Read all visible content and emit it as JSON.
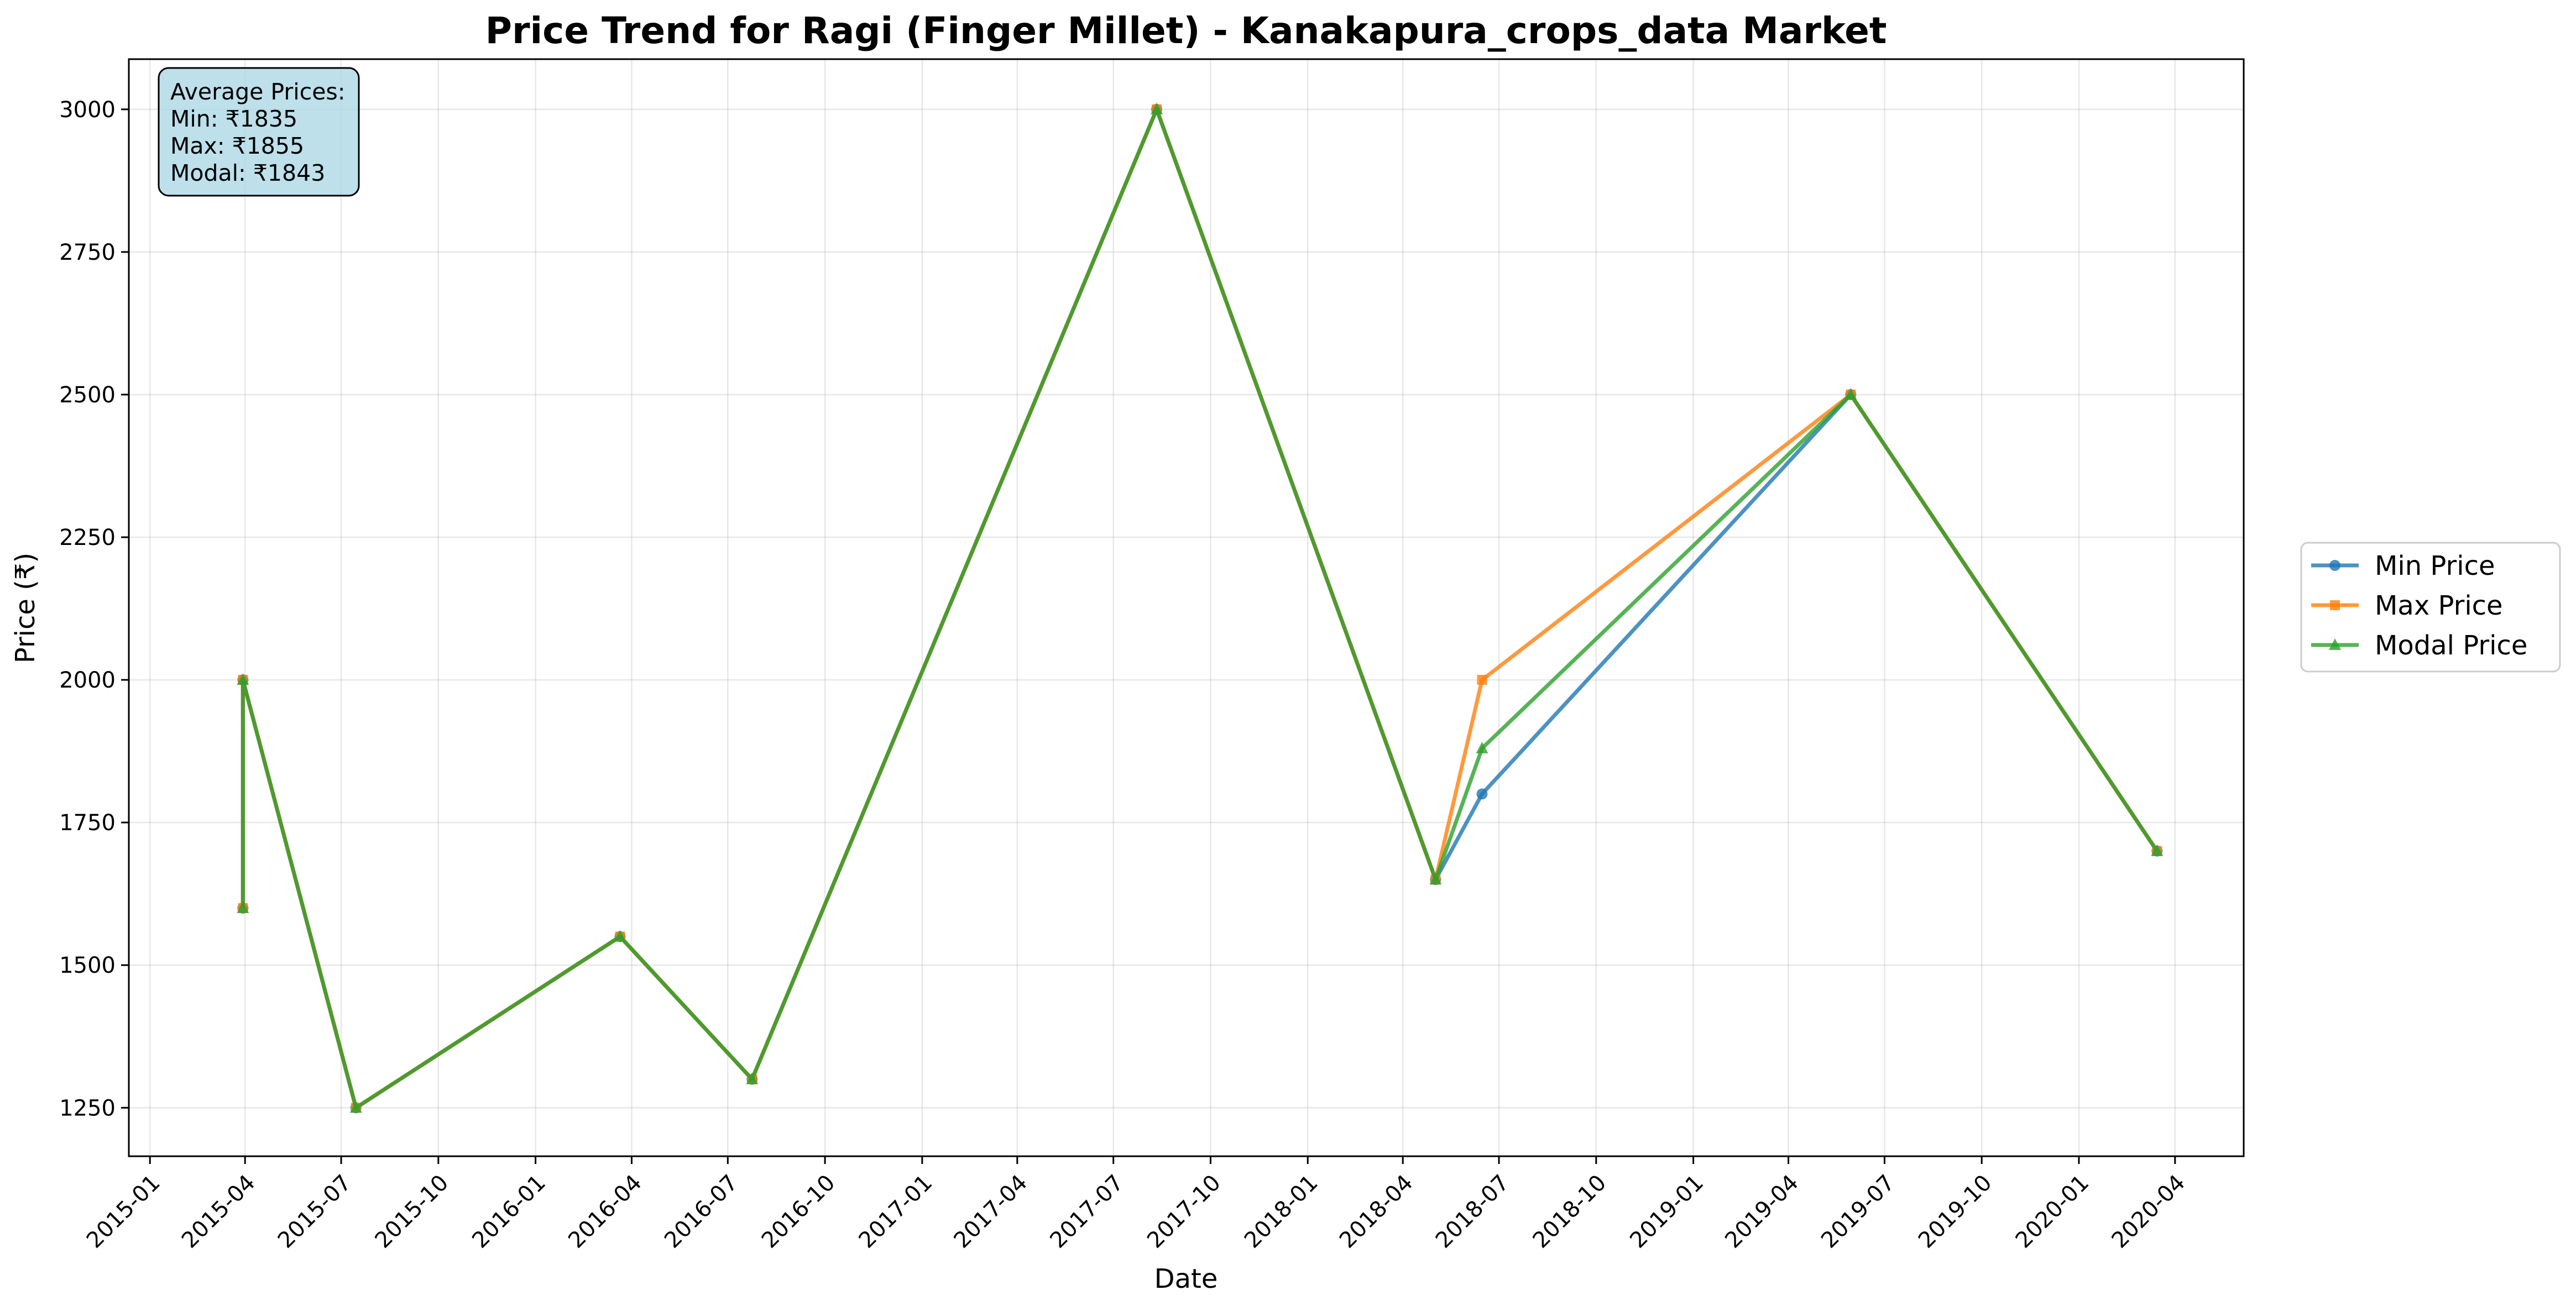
{
  "chart_data": {
    "type": "line",
    "title": "Price Trend for Ragi (Finger Millet) - Kanakapura_crops_data Market",
    "xlabel": "Date",
    "ylabel": "Price (₹)",
    "x_type": "date",
    "xlim": [
      "2014-12-12",
      "2020-06-05"
    ],
    "ylim": [
      1165,
      3088
    ],
    "grid": true,
    "legend_position": "right, outside plot area",
    "x_ticks": [
      "2015-01",
      "2015-04",
      "2015-07",
      "2015-10",
      "2016-01",
      "2016-04",
      "2016-07",
      "2016-10",
      "2017-01",
      "2017-04",
      "2017-07",
      "2017-10",
      "2018-01",
      "2018-04",
      "2018-07",
      "2018-10",
      "2019-01",
      "2019-04",
      "2019-07",
      "2019-10",
      "2020-01",
      "2020-04"
    ],
    "y_ticks": [
      1250,
      1500,
      1750,
      2000,
      2250,
      2500,
      2750,
      3000
    ],
    "x": [
      "2015-03-30",
      "2015-03-30",
      "2015-07-15",
      "2016-03-21",
      "2016-07-24",
      "2017-08-11",
      "2018-05-02",
      "2018-06-15",
      "2019-05-30",
      "2020-03-15"
    ],
    "series": [
      {
        "name": "Min Price",
        "marker": "circle",
        "color": "#1f77b4",
        "values": [
          1600,
          2000,
          1250,
          1550,
          1300,
          3000,
          1650,
          1800,
          2500,
          1700
        ]
      },
      {
        "name": "Max Price",
        "marker": "square",
        "color": "#ff7f0e",
        "values": [
          1600,
          2000,
          1250,
          1550,
          1300,
          3000,
          1650,
          2000,
          2500,
          1700
        ]
      },
      {
        "name": "Modal Price",
        "marker": "triangle",
        "color": "#2ca02c",
        "values": [
          1600,
          2000,
          1250,
          1550,
          1300,
          3000,
          1650,
          1880,
          2500,
          1700
        ]
      }
    ],
    "annotation": {
      "lines": [
        "Average Prices:",
        "Min: ₹1835",
        "Max: ₹1855",
        "Modal: ₹1843"
      ],
      "background": "#add8e6"
    }
  }
}
